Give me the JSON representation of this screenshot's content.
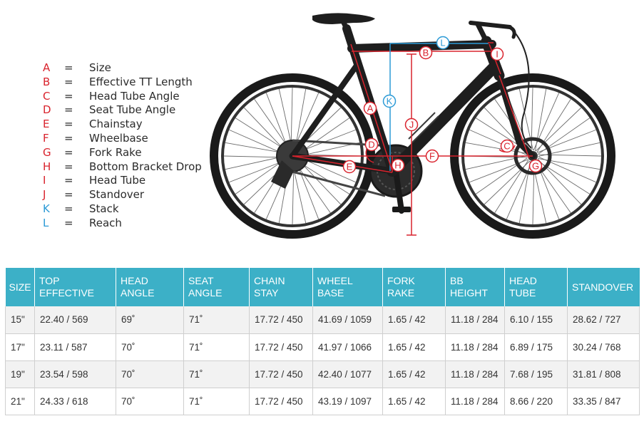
{
  "legend": [
    {
      "letter": "A",
      "eq": "=",
      "label": "Size",
      "color": "#d9232d"
    },
    {
      "letter": "B",
      "eq": "=",
      "label": "Effective TT Length",
      "color": "#d9232d"
    },
    {
      "letter": "C",
      "eq": "=",
      "label": "Head Tube Angle",
      "color": "#d9232d"
    },
    {
      "letter": "D",
      "eq": "=",
      "label": "Seat Tube Angle",
      "color": "#d9232d"
    },
    {
      "letter": "E",
      "eq": "=",
      "label": "Chainstay",
      "color": "#d9232d"
    },
    {
      "letter": "F",
      "eq": "=",
      "label": "Wheelbase",
      "color": "#d9232d"
    },
    {
      "letter": "G",
      "eq": "=",
      "label": "Fork Rake",
      "color": "#d9232d"
    },
    {
      "letter": "H",
      "eq": "=",
      "label": "Bottom Bracket Drop",
      "color": "#d9232d"
    },
    {
      "letter": "I",
      "eq": "=",
      "label": "Head Tube",
      "color": "#d9232d"
    },
    {
      "letter": "J",
      "eq": "=",
      "label": "Standover",
      "color": "#d9232d"
    },
    {
      "letter": "K",
      "eq": "=",
      "label": "Stack",
      "color": "#2b9ad6"
    },
    {
      "letter": "L",
      "eq": "=",
      "label": "Reach",
      "color": "#2b9ad6"
    }
  ],
  "diagram_labels": {
    "A": "A",
    "B": "B",
    "C": "C",
    "D": "D",
    "E": "E",
    "F": "F",
    "G": "G",
    "H": "H",
    "I": "I",
    "J": "J",
    "K": "K",
    "L": "L"
  },
  "colors": {
    "red": "#d9232d",
    "blue": "#2b9ad6",
    "header": "#3cb0c7",
    "frame": "#1e1e1e"
  },
  "table": {
    "headers": [
      [
        "SIZE"
      ],
      [
        "TOP",
        "EFFECTIVE"
      ],
      [
        "HEAD",
        "ANGLE"
      ],
      [
        "SEAT",
        "ANGLE"
      ],
      [
        "CHAIN",
        "STAY"
      ],
      [
        "WHEEL",
        "BASE"
      ],
      [
        "FORK",
        "RAKE"
      ],
      [
        "BB",
        "HEIGHT"
      ],
      [
        "HEAD",
        "TUBE"
      ],
      [
        "STANDOVER"
      ]
    ],
    "rows": [
      [
        "15\"",
        "22.40 / 569",
        "69˚",
        "71˚",
        "17.72 / 450",
        "41.69 / 1059",
        "1.65 / 42",
        "11.18 / 284",
        "6.10 / 155",
        "28.62 / 727"
      ],
      [
        "17\"",
        "23.11 / 587",
        "70˚",
        "71˚",
        "17.72 / 450",
        "41.97 / 1066",
        "1.65 / 42",
        "11.18 / 284",
        "6.89 / 175",
        "30.24 / 768"
      ],
      [
        "19\"",
        "23.54 / 598",
        "70˚",
        "71˚",
        "17.72 / 450",
        "42.40 / 1077",
        "1.65 / 42",
        "11.18 / 284",
        "7.68 / 195",
        "31.81 / 808"
      ],
      [
        "21\"",
        "24.33 / 618",
        "70˚",
        "71˚",
        "17.72 / 450",
        "43.19 / 1097",
        "1.65 / 42",
        "11.18 / 284",
        "8.66 / 220",
        "33.35 / 847"
      ]
    ]
  }
}
